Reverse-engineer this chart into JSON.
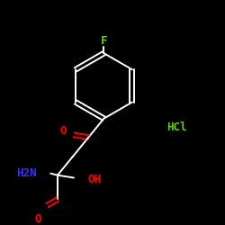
{
  "background_color": "#000000",
  "bond_color": "#ffffff",
  "F_color": "#66cc00",
  "O_color": "#ff0000",
  "N_color": "#3333ff",
  "HCl_color": "#66cc00",
  "OH_color": "#ff0000",
  "label_F": "F",
  "label_O1": "O",
  "label_O2": "O",
  "label_NH2": "H2N",
  "label_OH": "OH",
  "label_HCl": "HCl",
  "figsize": [
    2.5,
    2.5
  ],
  "dpi": 100
}
